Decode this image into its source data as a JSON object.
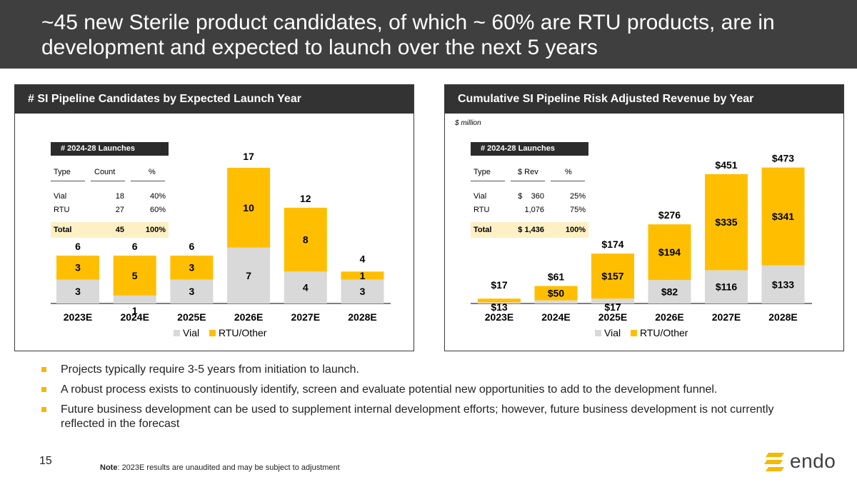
{
  "header": {
    "title": "~45 new Sterile product candidates, of which ~ 60% are RTU products, are in development and expected to launch over the next 5 years"
  },
  "colors": {
    "vial": "#d9d9d9",
    "rtu": "#ffbf00",
    "header_bg": "#3f3f3f",
    "total_row": "#fdf0c4"
  },
  "left_panel": {
    "title": "# SI Pipeline Candidates by Expected Launch Year",
    "table": {
      "title": "# 2024-28 Launches",
      "headers": [
        "Type",
        "Count",
        "%"
      ],
      "rows": [
        [
          "Vial",
          "18",
          "40%"
        ],
        [
          "RTU",
          "27",
          "60%"
        ]
      ],
      "total": [
        "Total",
        "45",
        "100%"
      ]
    }
  },
  "right_panel": {
    "title": "Cumulative SI Pipeline Risk Adjusted Revenue by Year",
    "unit_note": "$ million",
    "table": {
      "title": "# 2024-28 Launches",
      "headers": [
        "Type",
        "$ Rev",
        "%"
      ],
      "rows": [
        [
          "Vial",
          "$    360",
          "25%"
        ],
        [
          "RTU",
          "1,076",
          "75%"
        ]
      ],
      "total": [
        "Total",
        "$ 1,436",
        "100%"
      ]
    }
  },
  "chart_data": [
    {
      "type": "bar",
      "title": "# SI Pipeline Candidates by Expected Launch Year",
      "categories": [
        "2023E",
        "2024E",
        "2025E",
        "2026E",
        "2027E",
        "2028E"
      ],
      "series": [
        {
          "name": "Vial",
          "values": [
            3,
            1,
            3,
            7,
            4,
            3
          ],
          "labels": [
            "3",
            "1",
            "3",
            "7",
            "4",
            "3"
          ]
        },
        {
          "name": "RTU/Other",
          "values": [
            3,
            5,
            3,
            10,
            8,
            1
          ],
          "labels": [
            "3",
            "5",
            "3",
            "10",
            "8",
            "1"
          ]
        }
      ],
      "totals": [
        "6",
        "6",
        "6",
        "17",
        "12",
        "4"
      ],
      "stacked": true,
      "ylim": [
        0,
        17
      ],
      "legend": "bottom"
    },
    {
      "type": "bar",
      "title": "Cumulative SI Pipeline Risk Adjusted Revenue by Year",
      "categories": [
        "2023E",
        "2024E",
        "2025E",
        "2026E",
        "2027E",
        "2028E"
      ],
      "series": [
        {
          "name": "Vial",
          "values": [
            4,
            11,
            17,
            82,
            116,
            133
          ],
          "labels": [
            "",
            "",
            "$17",
            "$82",
            "$116",
            "$133"
          ]
        },
        {
          "name": "RTU/Other",
          "values": [
            13,
            50,
            157,
            194,
            335,
            341
          ],
          "labels": [
            "$13",
            "$50",
            "$157",
            "$194",
            "$335",
            "$341"
          ]
        }
      ],
      "totals": [
        "$17",
        "$61",
        "$174",
        "$276",
        "$451",
        "$473"
      ],
      "stacked": true,
      "ylim": [
        0,
        473
      ],
      "legend": "bottom"
    }
  ],
  "bullets": [
    "Projects typically require 3-5 years from initiation to launch.",
    "A robust process exists to continuously identify, screen and evaluate potential new opportunities to add to the development funnel.",
    "Future business development can be used to supplement internal development efforts; however, future business development is not currently reflected in the forecast"
  ],
  "page_number": "15",
  "footnote": {
    "label": "Note",
    "text": ": 2023E results are unaudited and may be subject to adjustment"
  },
  "logo": {
    "text": "endo"
  }
}
